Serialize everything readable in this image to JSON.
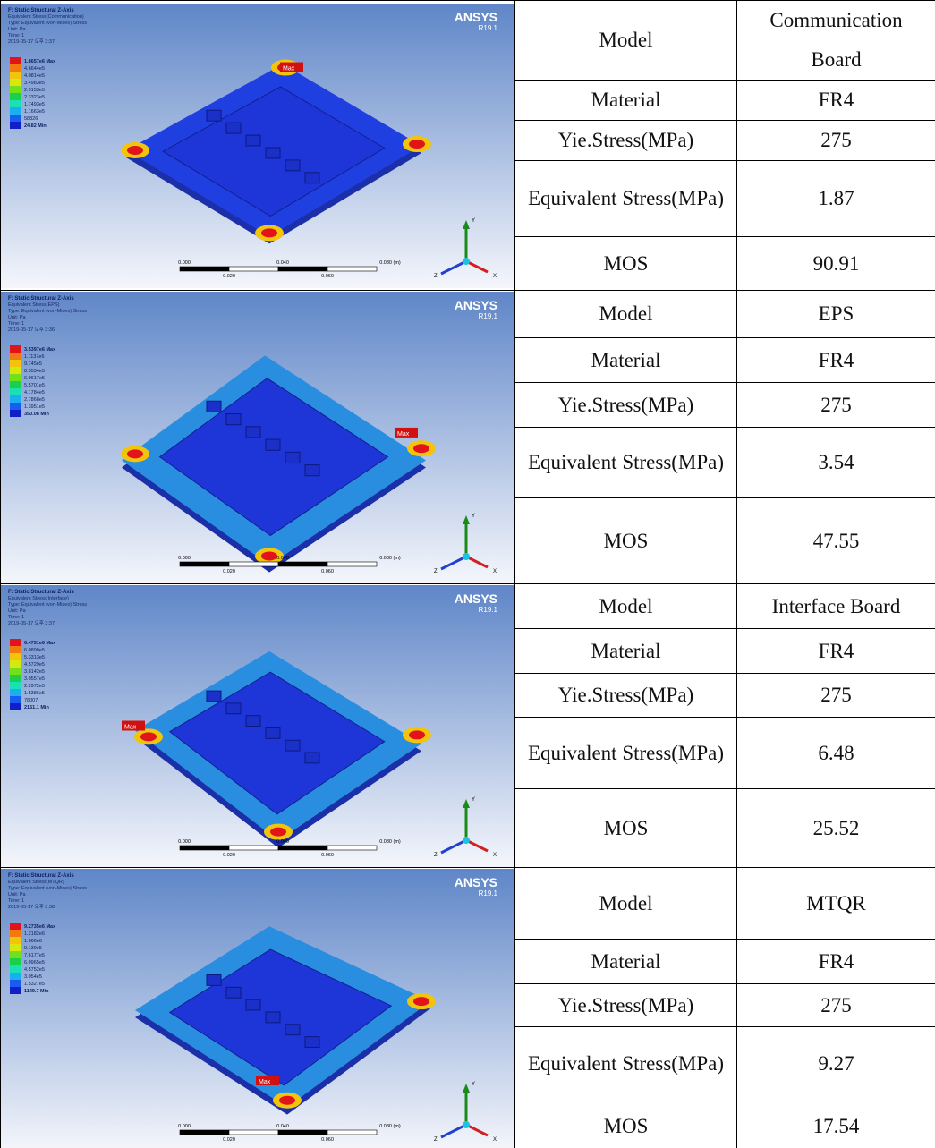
{
  "panels": [
    {
      "image": {
        "header": [
          "F: Static Structural Z-Axis",
          "Equivalent Stress(Communication)",
          "Type: Equivalent (von-Mises) Stress",
          "Unit: Pa",
          "Time: 1",
          "2019-05-17 오후 3:37"
        ],
        "legend": [
          "1.8657e6 Max",
          "4.6644e5",
          "4.0814e5",
          "3.4983e5",
          "2.9153e5",
          "2.3323e5",
          "1.7493e5",
          "1.1663e5",
          "58326",
          "24.82 Min"
        ],
        "brand": "ANSYS",
        "version": "R19.1",
        "max_tag": "Max",
        "scale_top": [
          "0.000",
          "0.040",
          "0.080 (m)"
        ],
        "scale_bottom": [
          "0.020",
          "0.060"
        ],
        "axes": [
          "Y",
          "Z",
          "X"
        ]
      },
      "rows": [
        {
          "label": "Model",
          "value": "Communication Board"
        },
        {
          "label": "Material",
          "value": "FR4"
        },
        {
          "label": "Yie.Stress(MPa)",
          "value": "275"
        },
        {
          "label": "Equivalent Stress(MPa)",
          "value": "1.87"
        },
        {
          "label": "MOS",
          "value": "90.91"
        }
      ]
    },
    {
      "image": {
        "header": [
          "F: Static Structural Z-Axis",
          "Equivalent Stress(EPS)",
          "Type: Equivalent (von-Mises) Stress",
          "Unit: Pa",
          "Time: 1",
          "2019-05-17 오후 3:36"
        ],
        "legend": [
          "3.5397e6 Max",
          "1.1137e6",
          "9.745e5",
          "8.3534e5",
          "6.9617e5",
          "5.5701e5",
          "4.1784e5",
          "2.7868e5",
          "1.3951e5",
          "350.08 Min"
        ],
        "brand": "ANSYS",
        "version": "R19.1",
        "max_tag": "Max",
        "scale_top": [
          "0.000",
          "0.040",
          "0.080 (m)"
        ],
        "scale_bottom": [
          "0.020",
          "0.060"
        ],
        "axes": [
          "Y",
          "Z",
          "X"
        ]
      },
      "rows": [
        {
          "label": "Model",
          "value": "EPS"
        },
        {
          "label": "Material",
          "value": "FR4"
        },
        {
          "label": "Yie.Stress(MPa)",
          "value": "275"
        },
        {
          "label": "Equivalent Stress(MPa)",
          "value": "3.54"
        },
        {
          "label": "MOS",
          "value": "47.55"
        }
      ]
    },
    {
      "image": {
        "header": [
          "F: Static Structural Z-Axis",
          "Equivalent Stress(Interface)",
          "Type: Equivalent (von-Mises) Stress",
          "Unit: Pa",
          "Time: 1",
          "2019-05-17 오후 3:37"
        ],
        "legend": [
          "6.4751e6 Max",
          "6.0899e5",
          "5.3313e5",
          "4.5729e5",
          "3.8142e5",
          "3.0557e5",
          "2.2972e5",
          "1.5386e5",
          "78007",
          "2151.1 Min"
        ],
        "brand": "ANSYS",
        "version": "R19.1",
        "max_tag": "Max",
        "scale_top": [
          "0.000",
          "0.040",
          "0.080 (m)"
        ],
        "scale_bottom": [
          "0.020",
          "0.060"
        ],
        "axes": [
          "Y",
          "Z",
          "X"
        ]
      },
      "rows": [
        {
          "label": "Model",
          "value": "Interface Board"
        },
        {
          "label": "Material",
          "value": "FR4"
        },
        {
          "label": "Yie.Stress(MPa)",
          "value": "275"
        },
        {
          "label": "Equivalent Stress(MPa)",
          "value": "6.48"
        },
        {
          "label": "MOS",
          "value": "25.52"
        }
      ]
    },
    {
      "image": {
        "header": [
          "F: Static Structural Z-Axis",
          "Equivalent Stress(MTQR)",
          "Type: Equivalent (von-Mises) Stress",
          "Unit: Pa",
          "Time: 1",
          "2019-05-17 오후 3:38"
        ],
        "legend": [
          "9.2735e6 Max",
          "1.2182e6",
          "1.066e6",
          "9.139e5",
          "7.6177e5",
          "6.0965e5",
          "4.5752e5",
          "3.054e5",
          "1.5327e5",
          "1149.7 Min"
        ],
        "brand": "ANSYS",
        "version": "R19.1",
        "max_tag": "Max",
        "scale_top": [
          "0.000",
          "0.040",
          "0.080 (m)"
        ],
        "scale_bottom": [
          "0.020",
          "0.060"
        ],
        "axes": [
          "Y",
          "Z",
          "X"
        ]
      },
      "rows": [
        {
          "label": "Model",
          "value": "MTQR"
        },
        {
          "label": "Material",
          "value": "FR4"
        },
        {
          "label": "Yie.Stress(MPa)",
          "value": "275"
        },
        {
          "label": "Equivalent Stress(MPa)",
          "value": "9.27"
        },
        {
          "label": "MOS",
          "value": "17.54"
        }
      ]
    }
  ]
}
